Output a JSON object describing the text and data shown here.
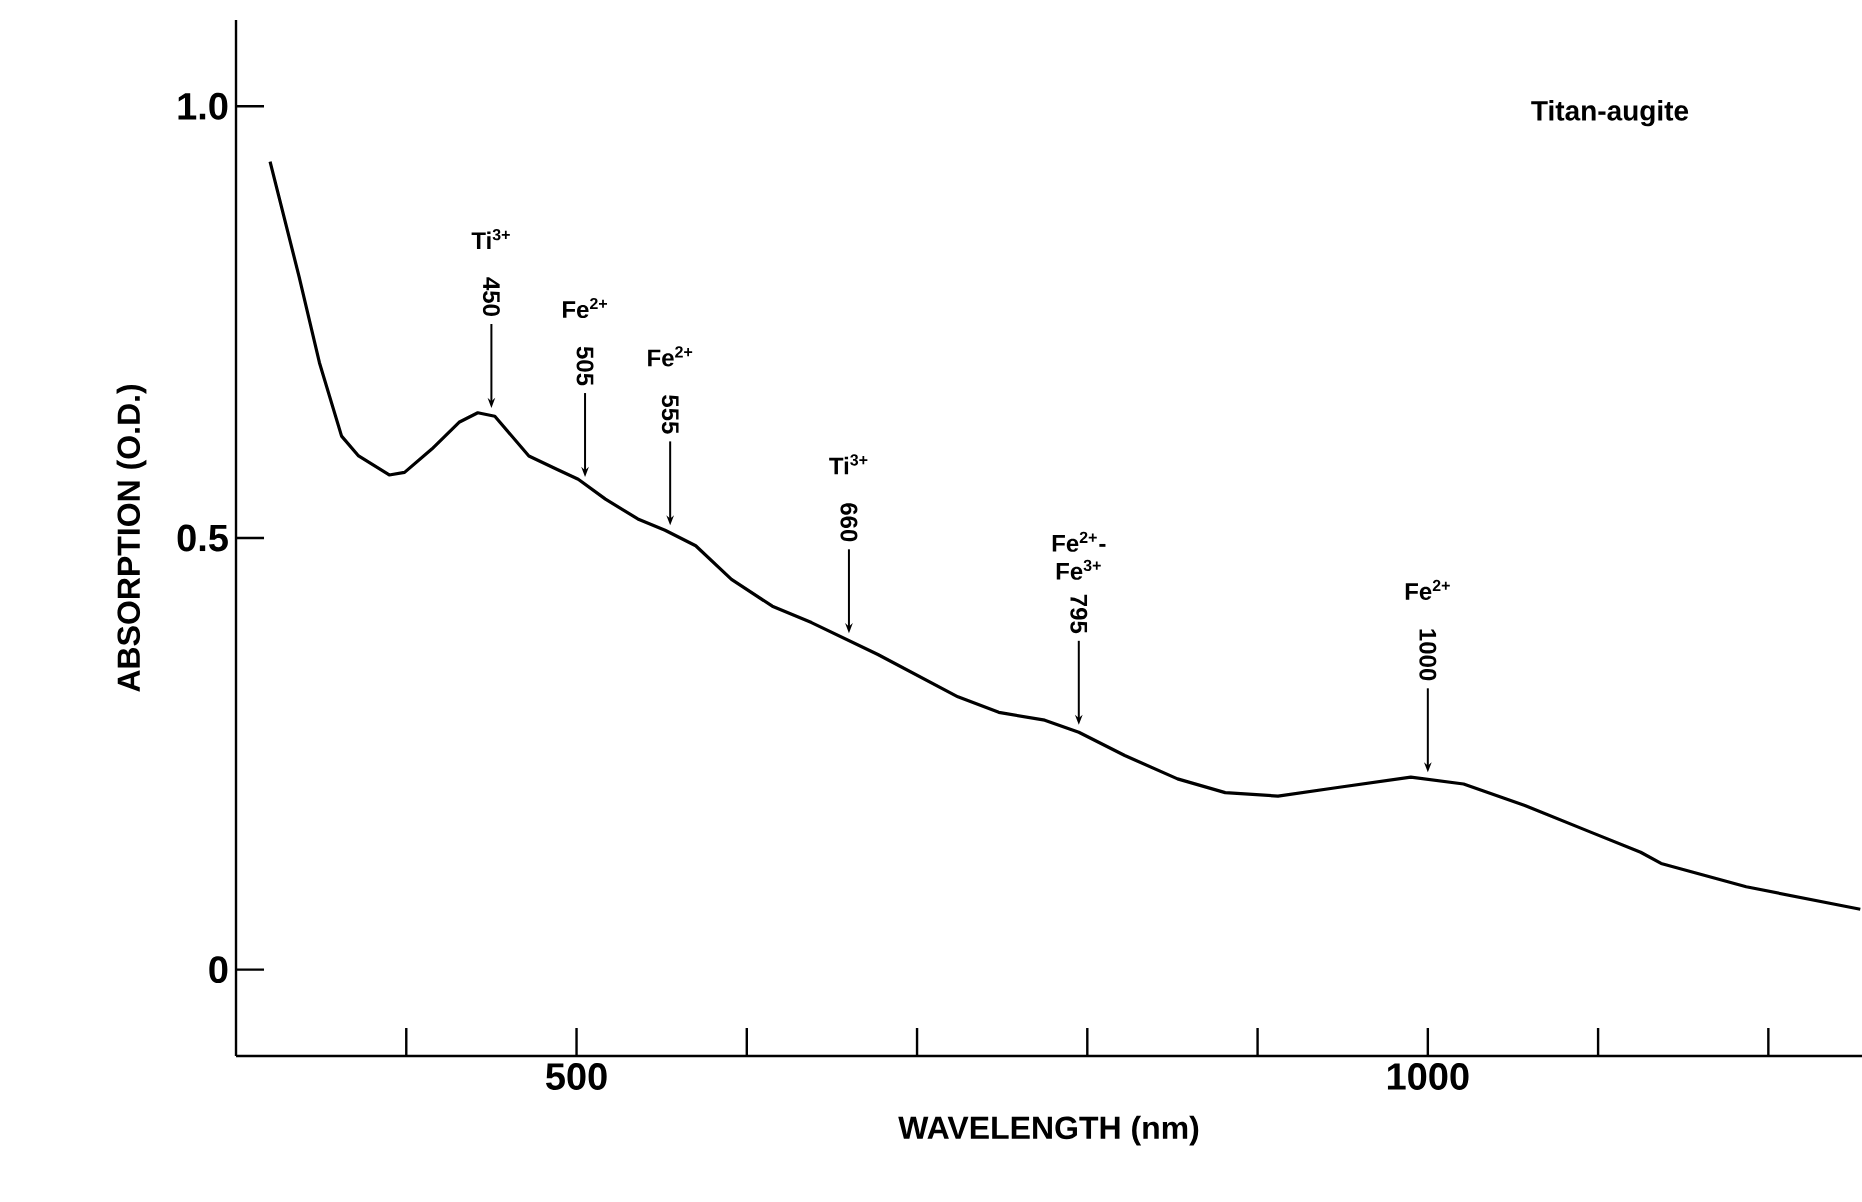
{
  "chart_data": {
    "type": "line",
    "xlabel": "WAVELENGTH (nm)",
    "ylabel": "ABSORPTION (O.D.)",
    "annotations": [
      "Titan-augite",
      {
        "text": "450",
        "x": 450,
        "y": 0.642
      },
      "Ti$^{3+}$",
      {
        "text": "505",
        "x": 505,
        "y": 0.562
      },
      "Fe$^{2+}$",
      {
        "text": "555",
        "x": 555,
        "y": 0.506
      },
      "Fe$^{2+}$",
      {
        "text": "660",
        "x": 660,
        "y": 0.381
      },
      "Ti$^{3+}$",
      {
        "text": "795",
        "x": 795,
        "y": 0.275
      },
      "Fe$^{2+}$-Fe$^{3+}$",
      {
        "text": "1000",
        "x": 1000,
        "y": 0.22
      },
      "Fe$^{2+}$"
    ],
    "x": [
      320,
      337,
      349,
      362,
      372,
      390,
      399,
      415,
      431,
      442,
      452,
      462,
      472,
      489,
      501,
      517,
      536,
      552,
      570,
      591,
      615,
      638,
      677,
      724,
      748,
      775,
      795,
      822,
      853,
      881,
      912,
      947,
      990,
      1021,
      1057,
      1096,
      1125,
      1137,
      1187,
      1254
    ],
    "series": [
      {
        "color": "#000000",
        "values": [
          0.936,
          0.803,
          0.703,
          0.618,
          0.595,
          0.573,
          0.576,
          0.603,
          0.634,
          0.645,
          0.641,
          0.618,
          0.595,
          0.579,
          0.568,
          0.545,
          0.522,
          0.509,
          0.491,
          0.452,
          0.421,
          0.402,
          0.365,
          0.316,
          0.298,
          0.289,
          0.275,
          0.248,
          0.221,
          0.205,
          0.201,
          0.211,
          0.223,
          0.215,
          0.19,
          0.159,
          0.136,
          0.123,
          0.096,
          0.07
        ]
      }
    ],
    "xlim": [
      300,
      1255
    ],
    "ylim": [
      -0.1,
      1.1
    ],
    "xticks": [
      {
        "value": 400,
        "label": null
      },
      500,
      {
        "value": 600,
        "label": null
      },
      {
        "value": 700,
        "label": null
      },
      {
        "value": 800,
        "label": null
      },
      {
        "value": 900,
        "label": null
      },
      1000,
      {
        "value": 1100,
        "label": null
      },
      {
        "value": 1200,
        "label": null
      }
    ],
    "yticks": [
      0,
      0.5,
      {
        "value": 1,
        "label": "1.0"
      }
    ],
    "line_style": "solid"
  }
}
